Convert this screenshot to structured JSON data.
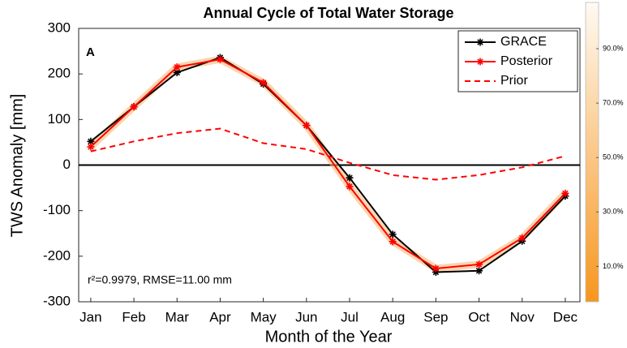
{
  "chart_data": {
    "type": "line",
    "title": "Annual Cycle of Total Water Storage",
    "xlabel": "Month of the Year",
    "ylabel": "TWS Anomaly [mm]",
    "annotations": [
      "A",
      "r²=0.9979, RMSE=11.00 mm"
    ],
    "categories": [
      "Jan",
      "Feb",
      "Mar",
      "Apr",
      "May",
      "Jun",
      "Jul",
      "Aug",
      "Sep",
      "Oct",
      "Nov",
      "Dec"
    ],
    "series": [
      {
        "name": "GRACE",
        "color": "#000000",
        "marker": "*",
        "linestyle": "-",
        "values": [
          52,
          128,
          203,
          236,
          178,
          87,
          -28,
          -152,
          -235,
          -232,
          -167,
          -68
        ]
      },
      {
        "name": "Posterior",
        "color": "#ff0000",
        "marker": "*",
        "linestyle": "-",
        "band": true,
        "values": [
          40,
          128,
          215,
          232,
          181,
          87,
          -47,
          -168,
          -227,
          -218,
          -160,
          -62
        ]
      },
      {
        "name": "Prior",
        "color": "#ff0000",
        "linestyle": "--",
        "values": [
          30,
          52,
          70,
          80,
          48,
          35,
          5,
          -22,
          -32,
          -22,
          -5,
          20
        ]
      }
    ],
    "ylim": [
      -300,
      300
    ],
    "yticks": [
      -300,
      -200,
      -100,
      0,
      100,
      200,
      300
    ],
    "legend": "top-right",
    "colorbar": {
      "lim": [
        -3,
        107
      ],
      "colors": [
        "#f7961e",
        "#fffaf3"
      ],
      "ticks": [
        {
          "value": 10,
          "label": "10.0%"
        },
        {
          "value": 30,
          "label": "30.0%"
        },
        {
          "value": 50,
          "label": "50.0%"
        },
        {
          "value": 70,
          "label": "70.0%"
        },
        {
          "value": 90,
          "label": "90.0%"
        }
      ]
    }
  }
}
